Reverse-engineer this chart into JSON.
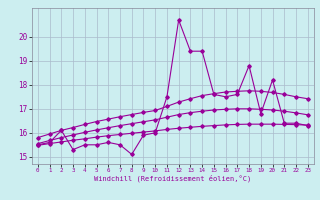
{
  "xlabel": "Windchill (Refroidissement éolien,°C)",
  "xlim": [
    -0.5,
    23.5
  ],
  "ylim": [
    14.7,
    21.2
  ],
  "bg_color": "#cceef0",
  "line_color": "#990099",
  "grid_color": "#aabbcc",
  "xticks": [
    0,
    1,
    2,
    3,
    4,
    5,
    6,
    7,
    8,
    9,
    10,
    11,
    12,
    13,
    14,
    15,
    16,
    17,
    18,
    19,
    20,
    21,
    22,
    23
  ],
  "yticks": [
    15,
    16,
    17,
    18,
    19,
    20
  ],
  "raw_x": [
    0,
    1,
    2,
    3,
    4,
    5,
    6,
    7,
    8,
    9,
    10,
    11,
    12,
    13,
    14,
    15,
    16,
    17,
    18,
    19,
    20,
    21,
    22,
    23
  ],
  "raw_y": [
    15.5,
    15.6,
    16.1,
    15.3,
    15.5,
    15.5,
    15.6,
    15.5,
    15.1,
    15.9,
    16.0,
    17.5,
    20.7,
    19.4,
    19.4,
    17.6,
    17.5,
    17.6,
    18.8,
    16.8,
    18.2,
    16.4,
    16.4,
    16.3
  ],
  "curve_top_x": [
    0,
    1,
    2,
    3,
    4,
    5,
    6,
    7,
    8,
    9,
    10,
    11,
    12,
    13,
    14,
    15,
    16,
    17,
    18,
    19,
    20,
    21,
    22,
    23
  ],
  "curve_top_y": [
    15.8,
    15.95,
    16.1,
    16.22,
    16.35,
    16.47,
    16.57,
    16.67,
    16.76,
    16.85,
    16.93,
    17.1,
    17.28,
    17.42,
    17.55,
    17.63,
    17.7,
    17.73,
    17.75,
    17.73,
    17.68,
    17.6,
    17.5,
    17.42
  ],
  "curve_mid_x": [
    0,
    1,
    2,
    3,
    4,
    5,
    6,
    7,
    8,
    9,
    10,
    11,
    12,
    13,
    14,
    15,
    16,
    17,
    18,
    19,
    20,
    21,
    22,
    23
  ],
  "curve_mid_y": [
    15.55,
    15.68,
    15.8,
    15.91,
    16.02,
    16.12,
    16.21,
    16.3,
    16.38,
    16.46,
    16.54,
    16.65,
    16.76,
    16.84,
    16.9,
    16.95,
    16.98,
    17.0,
    17.0,
    16.98,
    16.95,
    16.9,
    16.83,
    16.75
  ],
  "curve_bot_x": [
    0,
    1,
    2,
    3,
    4,
    5,
    6,
    7,
    8,
    9,
    10,
    11,
    12,
    13,
    14,
    15,
    16,
    17,
    18,
    19,
    20,
    21,
    22,
    23
  ],
  "curve_bot_y": [
    15.48,
    15.55,
    15.62,
    15.69,
    15.75,
    15.82,
    15.88,
    15.93,
    15.98,
    16.03,
    16.08,
    16.14,
    16.19,
    16.23,
    16.27,
    16.3,
    16.33,
    16.35,
    16.36,
    16.36,
    16.36,
    16.35,
    16.34,
    16.32
  ]
}
